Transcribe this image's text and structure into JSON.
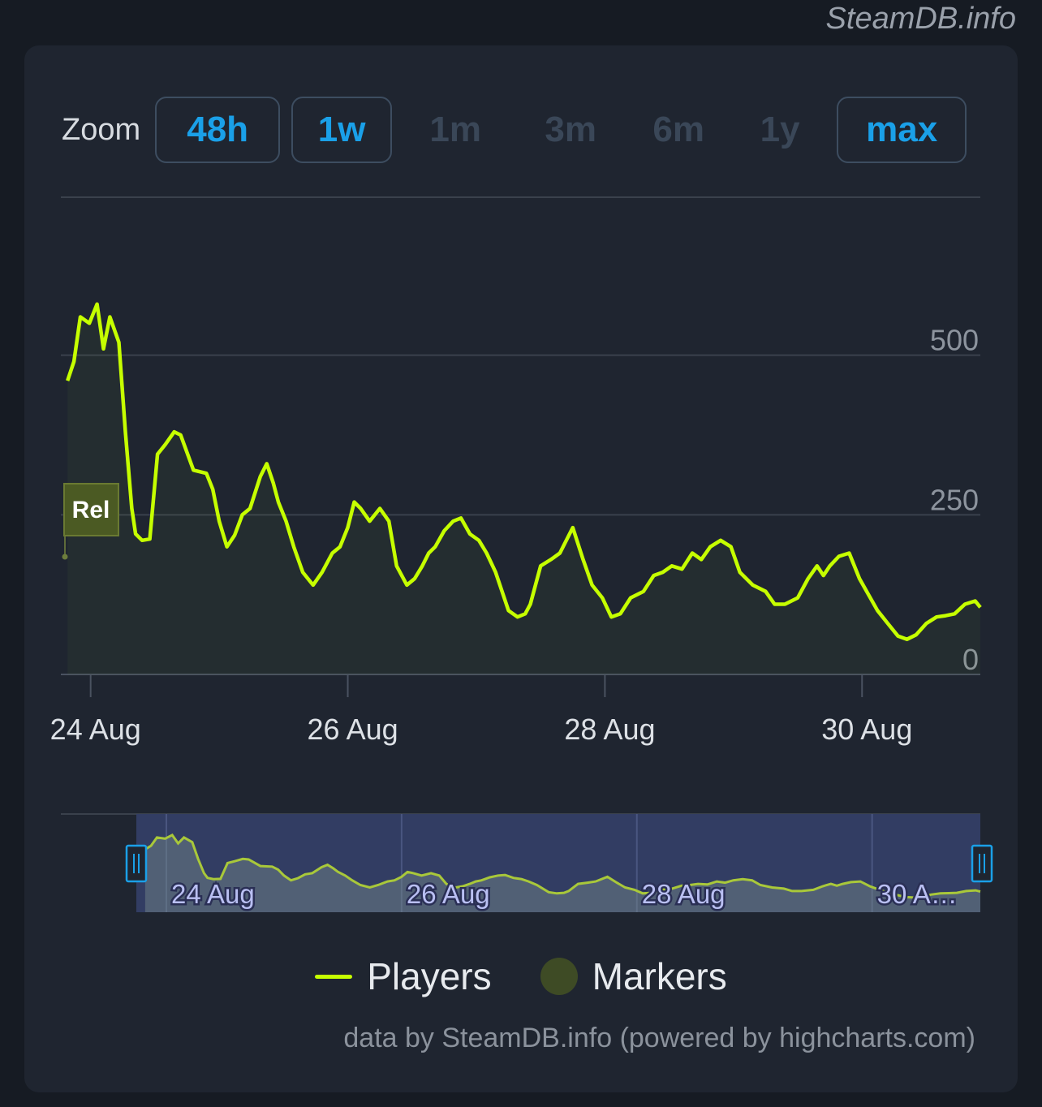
{
  "watermark": "SteamDB.info",
  "zoom": {
    "label": "Zoom",
    "buttons": [
      {
        "label": "48h",
        "active": true
      },
      {
        "label": "1w",
        "active": true
      },
      {
        "label": "1m",
        "active": false
      },
      {
        "label": "3m",
        "active": false
      },
      {
        "label": "6m",
        "active": false
      },
      {
        "label": "1y",
        "active": false
      },
      {
        "label": "max",
        "active": true
      }
    ]
  },
  "legend": {
    "players": "Players",
    "markers": "Markers"
  },
  "credits": "data by SteamDB.info (powered by highcharts.com)",
  "colors": {
    "line": "#c6ff00",
    "marker": "#3e4b25",
    "navigator_mask": "#323d63"
  },
  "chart_data": {
    "type": "line",
    "x_unit": "days since 23 Aug",
    "series": [
      {
        "name": "Players",
        "x": [
          0.02,
          0.07,
          0.12,
          0.19,
          0.25,
          0.3,
          0.35,
          0.42,
          0.47,
          0.52,
          0.55,
          0.6,
          0.66,
          0.72,
          0.78,
          0.85,
          0.9,
          1.0,
          1.1,
          1.15,
          1.2,
          1.26,
          1.32,
          1.38,
          1.44,
          1.52,
          1.57,
          1.62,
          1.66,
          1.72,
          1.78,
          1.85,
          1.93,
          2.0,
          2.08,
          2.14,
          2.2,
          2.25,
          2.3,
          2.37,
          2.45,
          2.52,
          2.58,
          2.66,
          2.72,
          2.78,
          2.83,
          2.88,
          2.95,
          3.02,
          3.08,
          3.15,
          3.22,
          3.28,
          3.35,
          3.45,
          3.52,
          3.58,
          3.62,
          3.7,
          3.78,
          3.85,
          3.95,
          4.03,
          4.1,
          4.18,
          4.25,
          4.32,
          4.4,
          4.5,
          4.58,
          4.65,
          4.72,
          4.8,
          4.88,
          4.95,
          5.02,
          5.1,
          5.18,
          5.25,
          5.35,
          5.45,
          5.52,
          5.6,
          5.7,
          5.78,
          5.85,
          5.9,
          5.95,
          6.02,
          6.1,
          6.18,
          6.25,
          6.32,
          6.4,
          6.48,
          6.55,
          6.62,
          6.7,
          6.78,
          6.85,
          6.92,
          7.0,
          7.08,
          7.12
        ],
        "y": [
          460,
          490,
          560,
          550,
          580,
          510,
          560,
          520,
          380,
          260,
          220,
          210,
          212,
          345,
          360,
          380,
          375,
          320,
          315,
          290,
          240,
          200,
          218,
          250,
          260,
          310,
          330,
          300,
          270,
          240,
          200,
          160,
          140,
          160,
          190,
          200,
          230,
          270,
          260,
          240,
          260,
          240,
          170,
          140,
          150,
          170,
          190,
          200,
          225,
          240,
          245,
          220,
          210,
          190,
          160,
          100,
          90,
          95,
          110,
          170,
          180,
          190,
          230,
          180,
          140,
          120,
          90,
          95,
          120,
          130,
          155,
          160,
          170,
          165,
          190,
          180,
          200,
          210,
          200,
          160,
          140,
          130,
          110,
          110,
          120,
          150,
          170,
          155,
          170,
          185,
          190,
          150,
          125,
          100,
          80,
          60,
          55,
          62,
          80,
          90,
          92,
          95,
          110,
          115,
          105
        ]
      }
    ],
    "markers": [
      {
        "x": 0.0,
        "label": "Rel"
      }
    ],
    "x_ticks": [
      {
        "x": 0.2,
        "label": "24 Aug"
      },
      {
        "x": 2.2,
        "label": "26 Aug"
      },
      {
        "x": 4.2,
        "label": "28 Aug"
      },
      {
        "x": 6.2,
        "label": "30 Aug"
      }
    ],
    "navigator_ticks": [
      {
        "x": 0.2,
        "label": "24 Aug"
      },
      {
        "x": 2.2,
        "label": "26 Aug"
      },
      {
        "x": 4.2,
        "label": "28 Aug"
      },
      {
        "x": 6.2,
        "label": "30 A…"
      }
    ],
    "y_ticks": [
      0,
      250,
      500
    ],
    "xlim": [
      0,
      7.12
    ],
    "ylim": [
      0,
      750
    ],
    "grid": true,
    "legend_position": "bottom"
  }
}
